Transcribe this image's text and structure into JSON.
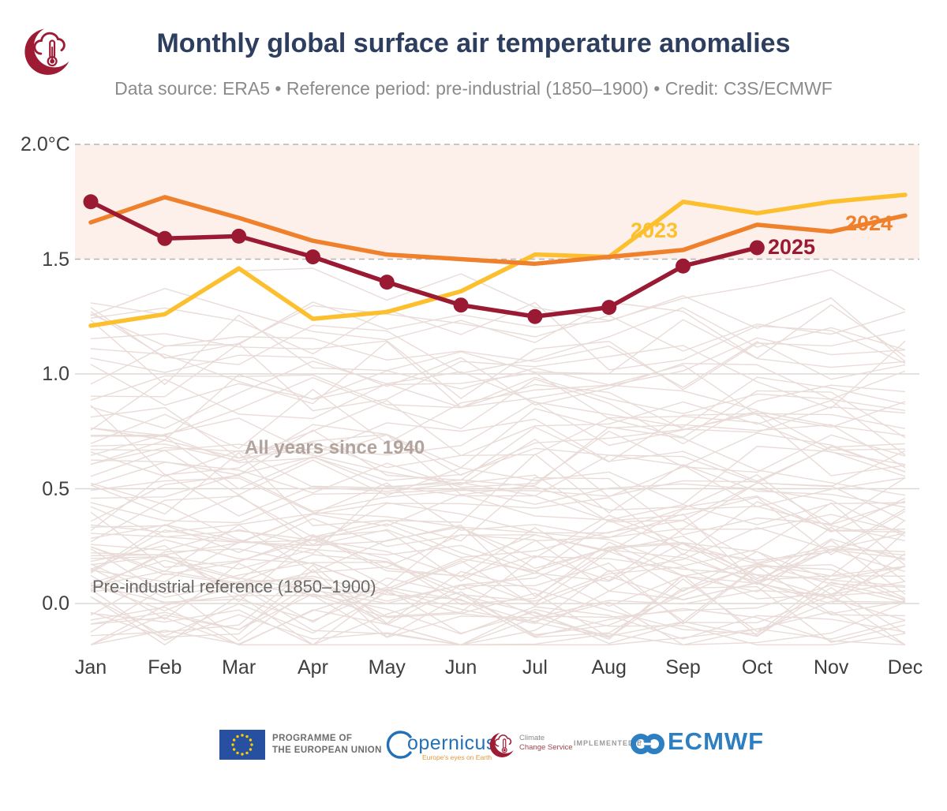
{
  "header": {
    "title": "Monthly global surface air temperature anomalies",
    "subtitle": "Data source: ERA5 • Reference period: pre-industrial (1850–1900) • Credit: C3S/ECMWF",
    "logo": "c3s-cloud-thermometer-logo"
  },
  "chart_data": {
    "type": "line",
    "title": "Monthly global surface air temperature anomalies",
    "categories": [
      "Jan",
      "Feb",
      "Mar",
      "Apr",
      "May",
      "Jun",
      "Jul",
      "Aug",
      "Sep",
      "Oct",
      "Nov",
      "Dec"
    ],
    "unit": "°C",
    "ylim": [
      -0.25,
      2.05
    ],
    "grid": "horizontal-only",
    "legend_position": "inline-labels",
    "y_ticks": [
      {
        "value": 2.0,
        "label": "2.0°C",
        "style": "dashed"
      },
      {
        "value": 1.5,
        "label": "1.5",
        "style": "dashed"
      },
      {
        "value": 1.0,
        "label": "1.0",
        "style": "solid"
      },
      {
        "value": 0.5,
        "label": "0.5",
        "style": "solid"
      },
      {
        "value": 0.0,
        "label": "0.0",
        "style": "solid"
      }
    ],
    "highlight_band": {
      "from": 1.5,
      "to": 2.0,
      "color": "#fdf0ea"
    },
    "series": [
      {
        "name": "2023",
        "color": "#fcc02e",
        "markers": false,
        "values": [
          1.21,
          1.26,
          1.46,
          1.24,
          1.27,
          1.36,
          1.52,
          1.51,
          1.75,
          1.7,
          1.75,
          1.78
        ]
      },
      {
        "name": "2024",
        "color": "#f0812c",
        "markers": false,
        "values": [
          1.66,
          1.77,
          1.68,
          1.58,
          1.52,
          1.5,
          1.48,
          1.51,
          1.54,
          1.65,
          1.62,
          1.69
        ]
      },
      {
        "name": "2025",
        "color": "#9a1a33",
        "markers": true,
        "values": [
          1.75,
          1.59,
          1.6,
          1.51,
          1.4,
          1.3,
          1.25,
          1.29,
          1.47,
          1.55
        ]
      }
    ],
    "background_series": {
      "label": "All years since 1940",
      "color": "#e9dcd8",
      "count": 83,
      "value_range": [
        -0.18,
        1.46
      ]
    },
    "annotations": [
      {
        "id": "all-years",
        "text": "All years since 1940"
      },
      {
        "id": "pre-industrial",
        "text": "Pre-industrial reference (1850–1900)"
      }
    ],
    "colors": {
      "dashed_grid": "#b5b5b5",
      "solid_grid": "#ded8d5",
      "axis_text": "#3f3f3f",
      "title": "#2d3e5f",
      "subtitle": "#8b8b8b",
      "logo_red": "#9e1b34"
    }
  },
  "footer": {
    "eu": {
      "line1": "PROGRAMME OF",
      "line2": "THE EUROPEAN UNION"
    },
    "copernicus": {
      "word": "opernicus",
      "tagline": "Europe's eyes on Earth"
    },
    "c3s": {
      "line1": "Climate",
      "line2": "Change Service"
    },
    "implemented_by": "IMPLEMENTED BY",
    "ecmwf": "ECMWF"
  }
}
